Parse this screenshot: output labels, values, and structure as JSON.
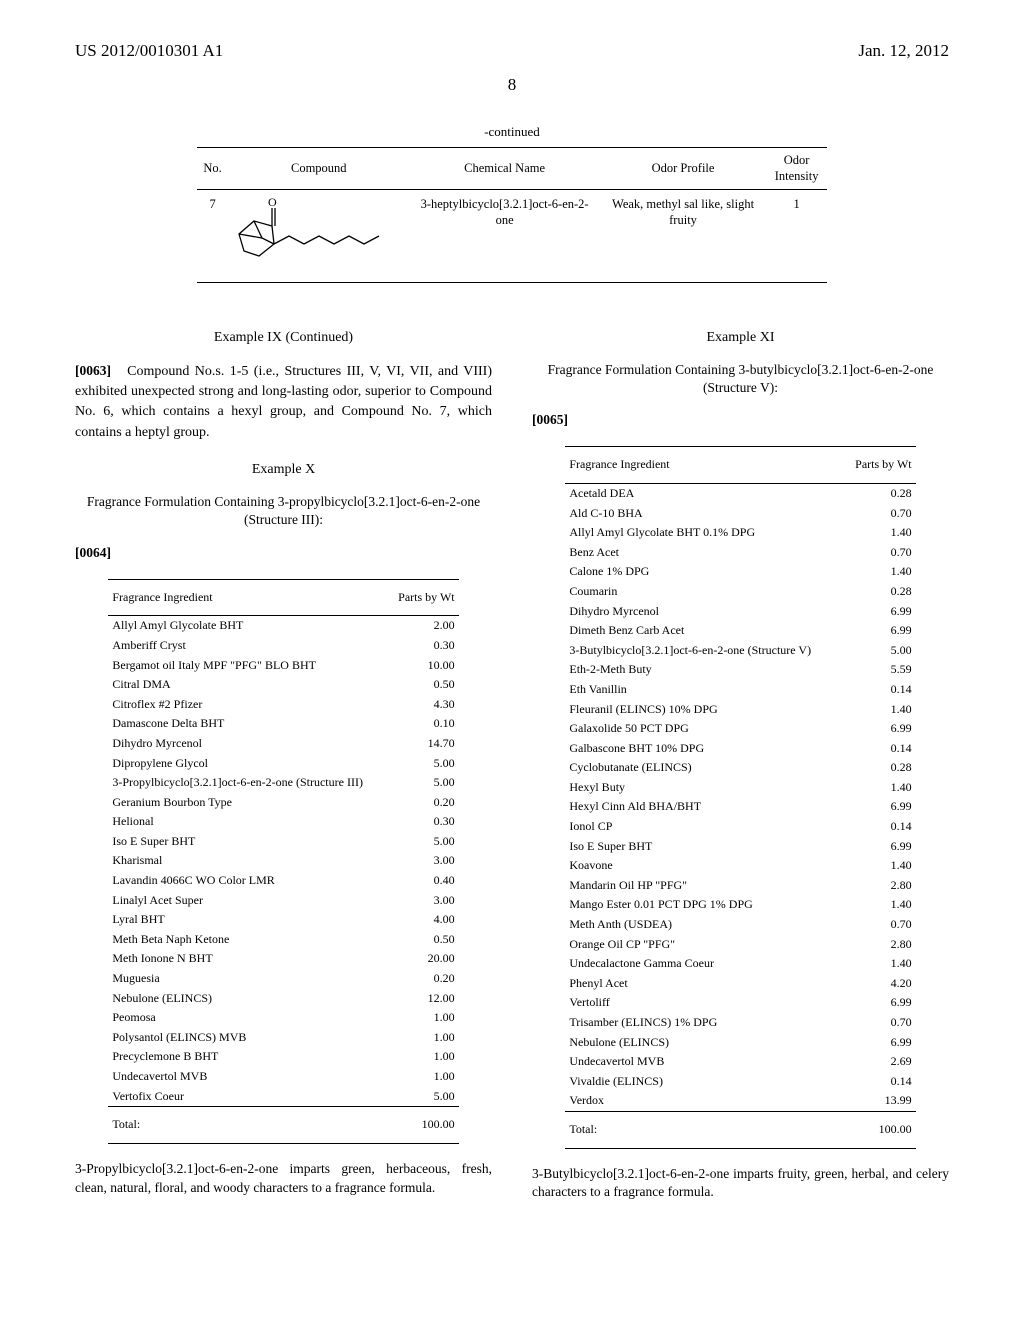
{
  "header": {
    "patent_id": "US 2012/0010301 A1",
    "date": "Jan. 12, 2012",
    "page_number": "8"
  },
  "continued": {
    "caption": "-continued",
    "columns": [
      "No.",
      "Compound",
      "Chemical Name",
      "Odor Profile",
      "Odor Intensity"
    ],
    "row": {
      "no": "7",
      "chem_name": "3-heptylbicyclo[3.2.1]oct-6-en-2-one",
      "odor_profile": "Weak, methyl sal like, slight fruity",
      "intensity": "1"
    }
  },
  "example9": {
    "heading": "Example IX (Continued)",
    "para_index": "[0063]",
    "text": "Compound No.s. 1-5 (i.e., Structures III, V, VI, VII, and VIII) exhibited unexpected strong and long-lasting odor, superior to Compound No. 6, which contains a hexyl group, and Compound No. 7, which contains a heptyl group."
  },
  "example10": {
    "heading": "Example X",
    "subtitle": "Fragrance Formulation Containing 3-propylbicyclo[3.2.1]oct-6-en-2-one (Structure III):",
    "para_index": "[0064]",
    "table_header": [
      "Fragrance Ingredient",
      "Parts by Wt"
    ],
    "rows": [
      [
        "Allyl Amyl Glycolate BHT",
        "2.00"
      ],
      [
        "Amberiff Cryst",
        "0.30"
      ],
      [
        "Bergamot oil Italy MPF \"PFG\" BLO BHT",
        "10.00"
      ],
      [
        "Citral DMA",
        "0.50"
      ],
      [
        "Citroflex #2 Pfizer",
        "4.30"
      ],
      [
        "Damascone Delta BHT",
        "0.10"
      ],
      [
        "Dihydro Myrcenol",
        "14.70"
      ],
      [
        "Dipropylene Glycol",
        "5.00"
      ],
      [
        "3-Propylbicyclo[3.2.1]oct-6-en-2-one (Structure III)",
        "5.00"
      ],
      [
        "Geranium Bourbon Type",
        "0.20"
      ],
      [
        "Helional",
        "0.30"
      ],
      [
        "Iso E Super BHT",
        "5.00"
      ],
      [
        "Kharismal",
        "3.00"
      ],
      [
        "Lavandin 4066C WO Color LMR",
        "0.40"
      ],
      [
        "Linalyl Acet Super",
        "3.00"
      ],
      [
        "Lyral BHT",
        "4.00"
      ],
      [
        "Meth Beta Naph Ketone",
        "0.50"
      ],
      [
        "Meth Ionone N BHT",
        "20.00"
      ],
      [
        "Muguesia",
        "0.20"
      ],
      [
        "Nebulone (ELINCS)",
        "12.00"
      ],
      [
        "Peomosa",
        "1.00"
      ],
      [
        "Polysantol (ELINCS) MVB",
        "1.00"
      ],
      [
        "Precyclemone B BHT",
        "1.00"
      ],
      [
        "Undecavertol MVB",
        "1.00"
      ],
      [
        "Vertofix Coeur",
        "5.00"
      ]
    ],
    "total_label": "Total:",
    "total_value": "100.00",
    "note": "3-Propylbicyclo[3.2.1]oct-6-en-2-one imparts green, herbaceous, fresh, clean, natural, floral, and woody characters to a fragrance formula."
  },
  "example11": {
    "heading": "Example XI",
    "subtitle": "Fragrance Formulation Containing 3-butylbicyclo[3.2.1]oct-6-en-2-one (Structure V):",
    "para_index": "[0065]",
    "table_header": [
      "Fragrance Ingredient",
      "Parts by Wt"
    ],
    "rows": [
      [
        "Acetald DEA",
        "0.28"
      ],
      [
        "Ald C-10 BHA",
        "0.70"
      ],
      [
        "Allyl Amyl Glycolate BHT 0.1% DPG",
        "1.40"
      ],
      [
        "Benz Acet",
        "0.70"
      ],
      [
        "Calone 1% DPG",
        "1.40"
      ],
      [
        "Coumarin",
        "0.28"
      ],
      [
        "Dihydro Myrcenol",
        "6.99"
      ],
      [
        "Dimeth Benz Carb Acet",
        "6.99"
      ],
      [
        "3-Butylbicyclo[3.2.1]oct-6-en-2-one (Structure V)",
        "5.00"
      ],
      [
        "Eth-2-Meth Buty",
        "5.59"
      ],
      [
        "Eth Vanillin",
        "0.14"
      ],
      [
        "Fleuranil (ELINCS) 10% DPG",
        "1.40"
      ],
      [
        "Galaxolide 50 PCT DPG",
        "6.99"
      ],
      [
        "Galbascone BHT 10% DPG",
        "0.14"
      ],
      [
        "Cyclobutanate (ELINCS)",
        "0.28"
      ],
      [
        "Hexyl Buty",
        "1.40"
      ],
      [
        "Hexyl Cinn Ald BHA/BHT",
        "6.99"
      ],
      [
        "Ionol CP",
        "0.14"
      ],
      [
        "Iso E Super BHT",
        "6.99"
      ],
      [
        "Koavone",
        "1.40"
      ],
      [
        "Mandarin Oil HP \"PFG\"",
        "2.80"
      ],
      [
        "Mango Ester 0.01 PCT DPG 1% DPG",
        "1.40"
      ],
      [
        "Meth Anth (USDEA)",
        "0.70"
      ],
      [
        "Orange Oil CP \"PFG\"",
        "2.80"
      ],
      [
        "Undecalactone Gamma Coeur",
        "1.40"
      ],
      [
        "Phenyl Acet",
        "4.20"
      ],
      [
        "Vertoliff",
        "6.99"
      ],
      [
        "Trisamber (ELINCS) 1% DPG",
        "0.70"
      ],
      [
        "Nebulone (ELINCS)",
        "6.99"
      ],
      [
        "Undecavertol MVB",
        "2.69"
      ],
      [
        "Vivaldie (ELINCS)",
        "0.14"
      ],
      [
        "Verdox",
        "13.99"
      ]
    ],
    "total_label": "Total:",
    "total_value": "100.00",
    "note": "3-Butylbicyclo[3.2.1]oct-6-en-2-one imparts fruity, green, herbal, and celery characters to a fragrance formula."
  }
}
